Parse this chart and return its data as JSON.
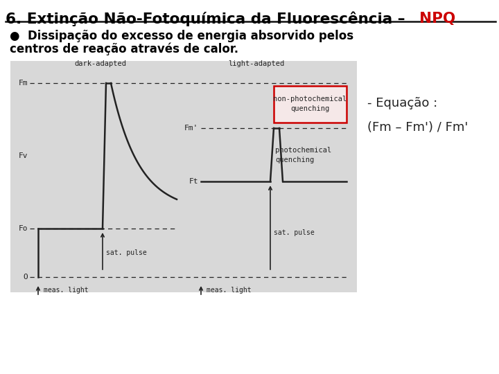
{
  "title_main": "6. Extinção Não-Fotoquímica da Fluorescência – ",
  "title_npq": "NPQ",
  "bullet_line1": "●  Dissipação do excesso de energia absorvido pelos",
  "bullet_line2": "centros de reação através de calor.",
  "equation_label": "- Equação :",
  "equation_formula": "(Fm – Fm') / Fm'",
  "diagram_labels": {
    "dark_adapted": "dark-adapted",
    "light_adapted": "light-adapted",
    "Fm": "Fm",
    "Fv": "Fv",
    "Fo": "Fo",
    "O": "O",
    "Fm_prime": "Fm'",
    "Ft": "Ft",
    "sat_pulse_1": "sat. pulse",
    "sat_pulse_2": "sat. pulse",
    "meas_light_1": "meas. light",
    "meas_light_2": "meas. light",
    "non_photochem": "non-photochemical\nquenching",
    "photochem": "photochemical\nquenching"
  },
  "bg_color": "#ffffff",
  "title_color": "#000000",
  "npq_color": "#cc0000",
  "diagram_color": "#222222",
  "box_color": "#cc0000",
  "diagram_bg": "#d8d8d8"
}
